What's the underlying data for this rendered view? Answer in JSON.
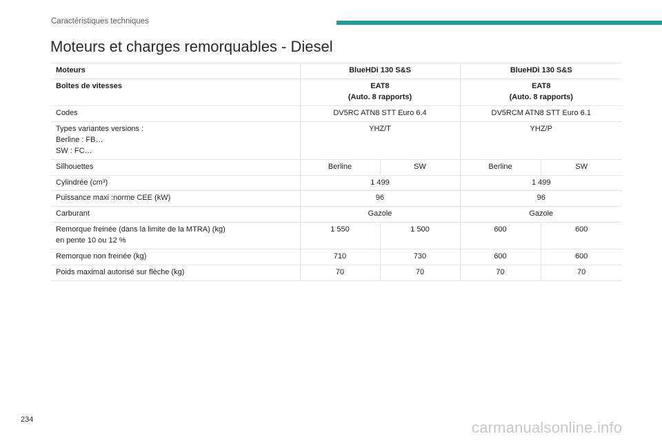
{
  "header": {
    "section": "Caractéristiques techniques",
    "accent_color": "#1e9a9b"
  },
  "title": "Moteurs et charges remorquables - Diesel",
  "table": {
    "head": {
      "label": "Moteurs",
      "col1": "BlueHDi 130 S&S",
      "col2": "BlueHDi 130 S&S"
    },
    "gearbox": {
      "label": "Boîtes de vitesses",
      "col1_line1": "EAT8",
      "col1_line2": "(Auto. 8 rapports)",
      "col2_line1": "EAT8",
      "col2_line2": "(Auto. 8 rapports)"
    },
    "codes": {
      "label": "Codes",
      "col1": "DV5RC ATN8 STT Euro 6.4",
      "col2": "DV5RCM ATN8 STT Euro 6.1"
    },
    "types": {
      "label_line1": "Types variantes versions :",
      "label_line2": "Berline : FB…",
      "label_line3": "SW : FC…",
      "col1": "YHZ/T",
      "col2": "YHZ/P"
    },
    "silhouettes": {
      "label": "Silhouettes",
      "values": [
        "Berline",
        "SW",
        "Berline",
        "SW"
      ]
    },
    "cylinder": {
      "label": "Cylindrée (cm³)",
      "col1": "1 499",
      "col2": "1 499"
    },
    "power": {
      "label": "Puissance maxi :norme CEE (kW)",
      "col1": "96",
      "col2": "96"
    },
    "fuel": {
      "label": "Carburant",
      "col1": "Gazole",
      "col2": "Gazole"
    },
    "braked_trailer": {
      "label_line1": "Remorque freinée (dans la limite de la MTRA) (kg)",
      "label_line2": "en pente 10 ou 12 %",
      "values": [
        "1 550",
        "1 500",
        "600",
        "600"
      ]
    },
    "unbraked_trailer": {
      "label": "Remorque non freinée (kg)",
      "values": [
        "710",
        "730",
        "600",
        "600"
      ]
    },
    "nose_weight": {
      "label": "Poids maximal autorisé sur flèche (kg)",
      "values": [
        "70",
        "70",
        "70",
        "70"
      ]
    }
  },
  "footer": {
    "page_number": "234",
    "watermark": "carmanualsonline.info"
  }
}
